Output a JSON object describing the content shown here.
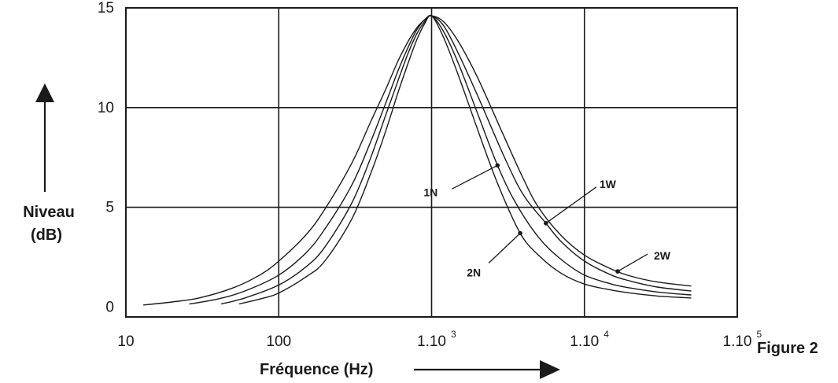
{
  "figure_label": "Figure 2",
  "chart_data": {
    "type": "line",
    "title": "",
    "xlabel": "Fréquence (Hz)",
    "ylabel_lines": [
      "Niveau",
      "(dB)"
    ],
    "x_scale": "log",
    "xlim": [
      10,
      100000
    ],
    "ylim": [
      -0.5,
      15
    ],
    "grid": true,
    "x_ticks": [
      {
        "value": 10,
        "base": "10",
        "sup": ""
      },
      {
        "value": 100,
        "base": "100",
        "sup": ""
      },
      {
        "value": 1000,
        "base": "1.10",
        "sup": "3"
      },
      {
        "value": 10000,
        "base": "1.10",
        "sup": "4"
      },
      {
        "value": 100000,
        "base": "1.10",
        "sup": "5"
      }
    ],
    "y_ticks": [
      {
        "value": 0,
        "label": "0"
      },
      {
        "value": 5,
        "label": "5"
      },
      {
        "value": 10,
        "label": "10"
      },
      {
        "value": 15,
        "label": "15"
      }
    ],
    "series": [
      {
        "name": "2W",
        "marker_x": 16500,
        "x": [
          13,
          20,
          30,
          50,
          75,
          100,
          150,
          200,
          300,
          400,
          500,
          600,
          700,
          800,
          900,
          1000,
          1200,
          1500,
          2000,
          3000,
          4000,
          5000,
          7000,
          10000,
          15000,
          20000,
          30000,
          50000
        ],
        "y": [
          0.1,
          0.25,
          0.45,
          0.95,
          1.6,
          2.3,
          3.6,
          4.9,
          7.2,
          9.3,
          10.9,
          12.3,
          13.3,
          14.0,
          14.4,
          14.6,
          14.3,
          13.3,
          11.5,
          8.5,
          6.4,
          5.0,
          3.6,
          2.6,
          1.9,
          1.55,
          1.25,
          1.05
        ]
      },
      {
        "name": "1W",
        "marker_x": 5600,
        "x": [
          26,
          40,
          60,
          100,
          150,
          200,
          300,
          400,
          500,
          600,
          700,
          800,
          900,
          1000,
          1200,
          1500,
          2000,
          3000,
          4000,
          5600,
          7000,
          10000,
          15000,
          20000,
          30000,
          50000
        ],
        "y": [
          0.15,
          0.4,
          0.8,
          1.6,
          2.7,
          3.9,
          6.1,
          8.3,
          10.2,
          11.8,
          13.0,
          13.9,
          14.4,
          14.6,
          14.1,
          12.7,
          10.6,
          7.5,
          5.6,
          4.2,
          3.3,
          2.3,
          1.6,
          1.3,
          1.0,
          0.8
        ]
      },
      {
        "name": "1N",
        "marker_x": 2700,
        "x": [
          42,
          60,
          100,
          150,
          200,
          300,
          400,
          500,
          600,
          700,
          800,
          900,
          1000,
          1200,
          1500,
          2000,
          2700,
          3500,
          5000,
          7000,
          10000,
          15000,
          20000,
          30000,
          50000
        ],
        "y": [
          0.15,
          0.45,
          1.1,
          2.0,
          3.0,
          5.2,
          7.5,
          9.6,
          11.3,
          12.7,
          13.7,
          14.3,
          14.6,
          13.8,
          12.2,
          9.7,
          7.1,
          5.3,
          3.5,
          2.4,
          1.6,
          1.15,
          0.95,
          0.75,
          0.6
        ]
      },
      {
        "name": "2N",
        "marker_x": 3800,
        "x": [
          55,
          80,
          100,
          150,
          200,
          300,
          400,
          500,
          600,
          700,
          800,
          900,
          1000,
          1200,
          1500,
          2000,
          2700,
          3800,
          5000,
          7000,
          10000,
          15000,
          20000,
          30000,
          50000
        ],
        "y": [
          0.15,
          0.45,
          0.7,
          1.5,
          2.3,
          4.4,
          6.7,
          8.8,
          10.7,
          12.2,
          13.4,
          14.2,
          14.6,
          13.5,
          11.6,
          8.9,
          6.2,
          3.7,
          2.6,
          1.7,
          1.15,
          0.85,
          0.7,
          0.55,
          0.45
        ]
      }
    ],
    "annotations": [
      {
        "series": "1N",
        "label": "1N"
      },
      {
        "series": "1W",
        "label": "1W"
      },
      {
        "series": "2N",
        "label": "2N"
      },
      {
        "series": "2W",
        "label": "2W"
      }
    ]
  }
}
